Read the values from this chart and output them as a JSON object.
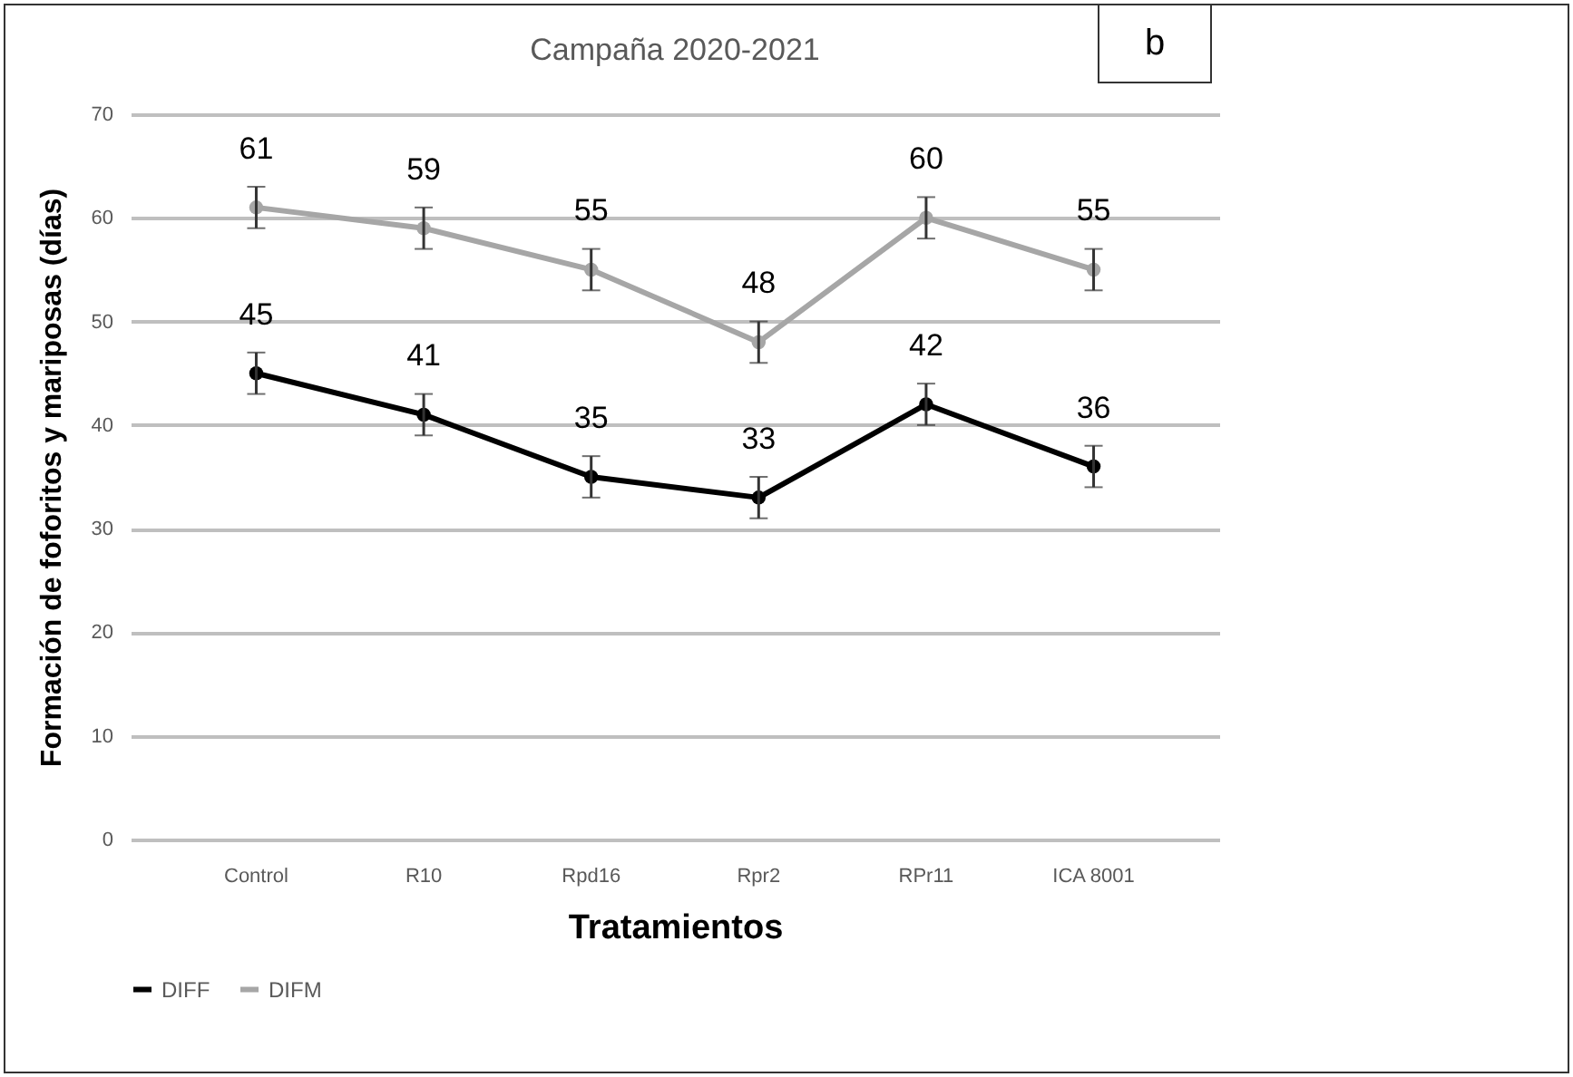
{
  "chart_data": {
    "type": "line",
    "title": "Campaña 2020-2021",
    "xlabel": "Tratamientos",
    "ylabel": "Formación  de foforitos y mariposas (días)",
    "annotations": [
      "b"
    ],
    "categories": [
      "Control",
      "R10",
      "Rpd16",
      "Rpr2",
      "RPr11",
      "ICA 8001"
    ],
    "series": [
      {
        "name": "DIFF",
        "color": "#000000",
        "values": [
          45,
          41,
          35,
          33,
          42,
          36
        ],
        "errors": [
          2,
          2,
          2,
          2,
          2,
          2
        ]
      },
      {
        "name": "DIFM",
        "color": "#a6a6a6",
        "values": [
          61,
          59,
          55,
          48,
          60,
          55
        ],
        "errors": [
          2,
          2,
          2,
          2,
          2,
          2
        ]
      }
    ],
    "ylim": [
      0,
      70
    ],
    "yticks": [
      0,
      10,
      20,
      30,
      40,
      50,
      60,
      70
    ],
    "grid": "y",
    "legend": "bottom",
    "marker": "circle",
    "data_labels": true
  }
}
